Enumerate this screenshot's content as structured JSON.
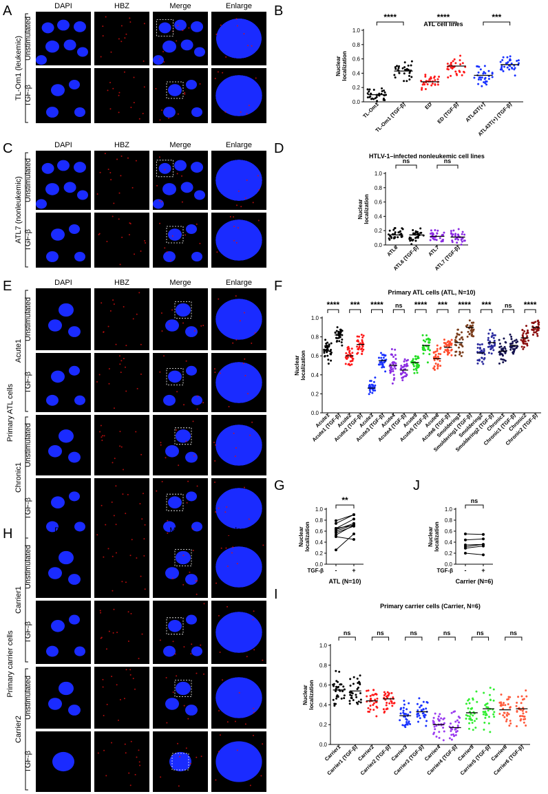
{
  "panel_letters": {
    "A": "A",
    "B": "B",
    "C": "C",
    "D": "D",
    "E": "E",
    "F": "F",
    "G": "G",
    "H": "H",
    "I": "I",
    "J": "J"
  },
  "micro": {
    "col_headers": [
      "DAPI",
      "HBZ",
      "Merge",
      "Enlarge"
    ],
    "unstim": "Unstimulated",
    "tgf": "TGF-β",
    "A_group": "TL-Om1 (leukemic)",
    "C_group": "ATL7 (nonleukemic)",
    "E_outer": "Primary ATL cells",
    "E_sub1": "Acute1",
    "E_sub2": "Chronic1",
    "H_outer": "Primary carrier cells",
    "H_sub1": "Carrier1",
    "H_sub2": "Carrier2"
  },
  "colors": {
    "dapi": "#1a2bff",
    "hbz": "#e01010",
    "black": "#000000",
    "red": "#ff1a1a",
    "blue": "#1a33ff",
    "violet": "#8a2be2",
    "green": "#22dd22",
    "orange": "#ff4d2e",
    "brown": "#7b3f1e",
    "navy": "#14124f",
    "maroon": "#8b0f0f",
    "purple": "#9b3cf0",
    "royal": "#2a4fe0",
    "bright_green": "#33ee33",
    "tomato": "#ff5a3c"
  },
  "chart_data": [
    {
      "id": "B",
      "type": "scatter",
      "title": "ATL cell lines",
      "ylabel": "Nuclear localization",
      "ylim": [
        0,
        1.0
      ],
      "yticks": [
        "0.0",
        "0.2",
        "0.4",
        "0.6",
        "0.8",
        "1.0"
      ],
      "categories": [
        "TL-Om1",
        "TL-Om1 (TGF-β)",
        "ED",
        "ED (TGF-β)",
        "ATL43T(+)",
        "ATL43T(+) (TGF-β)"
      ],
      "medians": [
        0.1,
        0.43,
        0.28,
        0.5,
        0.37,
        0.52
      ],
      "spread": [
        0.06,
        0.1,
        0.07,
        0.09,
        0.1,
        0.1
      ],
      "colors": [
        "#000000",
        "#000000",
        "#ff1a1a",
        "#ff1a1a",
        "#1a33ff",
        "#1a33ff"
      ],
      "comparisons": [
        {
          "pair": [
            0,
            1
          ],
          "label": "****"
        },
        {
          "pair": [
            2,
            3
          ],
          "label": "****"
        },
        {
          "pair": [
            4,
            5
          ],
          "label": "***"
        }
      ]
    },
    {
      "id": "D",
      "type": "scatter",
      "title": "HTLV-1–infected nonleukemic cell lines",
      "ylabel": "Nuclear localization",
      "ylim": [
        0,
        1.0
      ],
      "yticks": [
        "0.0",
        "0.2",
        "0.4",
        "0.6",
        "0.8",
        "1.0"
      ],
      "categories": [
        "ATL6",
        "ATL6 (TGF-β)",
        "ATL7",
        "ATL7 (TGF-β)"
      ],
      "medians": [
        0.14,
        0.14,
        0.12,
        0.11
      ],
      "spread": [
        0.07,
        0.07,
        0.07,
        0.07
      ],
      "colors": [
        "#000000",
        "#000000",
        "#8a2be2",
        "#8a2be2"
      ],
      "comparisons": [
        {
          "pair": [
            0,
            1
          ],
          "label": "ns"
        },
        {
          "pair": [
            2,
            3
          ],
          "label": "ns"
        }
      ]
    },
    {
      "id": "F",
      "type": "scatter",
      "title": "Primary ATL cells (ATL, N=10)",
      "ylabel": "Nuclear localization",
      "ylim": [
        0,
        1.0
      ],
      "yticks": [
        "0.0",
        "0.2",
        "0.4",
        "0.6",
        "0.8",
        "1.0"
      ],
      "categories": [
        "Acute1",
        "Acute1 (TGF-β)",
        "Acute2",
        "Acute2 (TGF-β)",
        "Acute3",
        "Acute3 (TGF-β)",
        "Acute4",
        "Acute4 (TGF-β)",
        "Acute5",
        "Acute5 (TGF-β)",
        "Acute6",
        "Acute6 (TGF-β)",
        "Smoldering1",
        "Smoldering1 (TGF-β)",
        "Smoldering2",
        "Smoldering2 (TGF-β)",
        "Chronic1",
        "Chronic1 (TGF-β)",
        "Chronic2",
        "Chronic2 (TGF-β)"
      ],
      "medians": [
        0.65,
        0.82,
        0.6,
        0.72,
        0.26,
        0.55,
        0.5,
        0.45,
        0.53,
        0.71,
        0.57,
        0.69,
        0.74,
        0.9,
        0.63,
        0.74,
        0.65,
        0.71,
        0.79,
        0.9
      ],
      "spread": [
        0.12,
        0.06,
        0.08,
        0.07,
        0.06,
        0.08,
        0.1,
        0.1,
        0.08,
        0.09,
        0.09,
        0.09,
        0.1,
        0.06,
        0.08,
        0.09,
        0.1,
        0.08,
        0.08,
        0.06
      ],
      "colors": [
        "#000000",
        "#000000",
        "#ff1a1a",
        "#ff1a1a",
        "#1a33ff",
        "#1a33ff",
        "#8a2be2",
        "#8a2be2",
        "#22dd22",
        "#22dd22",
        "#ff4d2e",
        "#ff4d2e",
        "#7b3f1e",
        "#7b3f1e",
        "#2a2a9e",
        "#2a2a9e",
        "#14124f",
        "#14124f",
        "#8b0f0f",
        "#8b0f0f"
      ],
      "comparisons": [
        {
          "pair": [
            0,
            1
          ],
          "label": "****"
        },
        {
          "pair": [
            2,
            3
          ],
          "label": "***"
        },
        {
          "pair": [
            4,
            5
          ],
          "label": "****"
        },
        {
          "pair": [
            6,
            7
          ],
          "label": "ns"
        },
        {
          "pair": [
            8,
            9
          ],
          "label": "****"
        },
        {
          "pair": [
            10,
            11
          ],
          "label": "***"
        },
        {
          "pair": [
            12,
            13
          ],
          "label": "****"
        },
        {
          "pair": [
            14,
            15
          ],
          "label": "***"
        },
        {
          "pair": [
            16,
            17
          ],
          "label": "ns"
        },
        {
          "pair": [
            18,
            19
          ],
          "label": "****"
        }
      ]
    },
    {
      "id": "G",
      "type": "line",
      "ylabel": "Nuclear localization",
      "xlabel": "ATL (N=10)",
      "xrowlabel": "TGF-β",
      "ylim": [
        0,
        1.0
      ],
      "yticks": [
        "0.0",
        "0.2",
        "0.4",
        "0.6",
        "0.8",
        "1.0"
      ],
      "x": [
        "-",
        "+"
      ],
      "pairs": [
        [
          0.65,
          0.82
        ],
        [
          0.6,
          0.72
        ],
        [
          0.26,
          0.55
        ],
        [
          0.5,
          0.45
        ],
        [
          0.53,
          0.71
        ],
        [
          0.57,
          0.69
        ],
        [
          0.74,
          0.9
        ],
        [
          0.63,
          0.74
        ],
        [
          0.65,
          0.71
        ],
        [
          0.79,
          0.9
        ]
      ],
      "significance": "**"
    },
    {
      "id": "J",
      "type": "line",
      "ylabel": "Nuclear localization",
      "xlabel": "Carrier (N=6)",
      "xrowlabel": "TGF-β",
      "ylim": [
        0,
        1.0
      ],
      "yticks": [
        "0.0",
        "0.2",
        "0.4",
        "0.6",
        "0.8",
        "1.0"
      ],
      "x": [
        "-",
        "+"
      ],
      "pairs": [
        [
          0.55,
          0.54
        ],
        [
          0.44,
          0.46
        ],
        [
          0.29,
          0.33
        ],
        [
          0.2,
          0.17
        ],
        [
          0.32,
          0.36
        ],
        [
          0.35,
          0.36
        ]
      ],
      "significance": "ns"
    },
    {
      "id": "I",
      "type": "scatter",
      "title": "Primary carrier cells (Carrier, N=6)",
      "ylabel": "Nuclear localization",
      "ylim": [
        0,
        1.0
      ],
      "yticks": [
        "0.0",
        "0.2",
        "0.4",
        "0.6",
        "0.8",
        "1.0"
      ],
      "categories": [
        "Carrier1",
        "Carrier1 (TGF-β)",
        "Carrier2",
        "Carrier2 (TGF-β)",
        "Carrier3",
        "Carrier3 (TGF-β)",
        "Carrier4",
        "Carrier4 (TGF-β)",
        "Carrier5",
        "Carrier5 (TGF-β)",
        "Carrier6",
        "Carrier6 (TGF-β)"
      ],
      "medians": [
        0.55,
        0.54,
        0.44,
        0.46,
        0.29,
        0.33,
        0.2,
        0.17,
        0.32,
        0.36,
        0.35,
        0.36
      ],
      "spread": [
        0.13,
        0.12,
        0.1,
        0.1,
        0.09,
        0.09,
        0.1,
        0.11,
        0.12,
        0.13,
        0.12,
        0.13
      ],
      "colors": [
        "#000000",
        "#000000",
        "#ff1a1a",
        "#ff1a1a",
        "#1a33ff",
        "#1a33ff",
        "#9b3cf0",
        "#9b3cf0",
        "#33ee33",
        "#33ee33",
        "#ff5a3c",
        "#ff5a3c"
      ],
      "comparisons": [
        {
          "pair": [
            0,
            1
          ],
          "label": "ns"
        },
        {
          "pair": [
            2,
            3
          ],
          "label": "ns"
        },
        {
          "pair": [
            4,
            5
          ],
          "label": "ns"
        },
        {
          "pair": [
            6,
            7
          ],
          "label": "ns"
        },
        {
          "pair": [
            8,
            9
          ],
          "label": "ns"
        },
        {
          "pair": [
            10,
            11
          ],
          "label": "ns"
        }
      ]
    }
  ]
}
